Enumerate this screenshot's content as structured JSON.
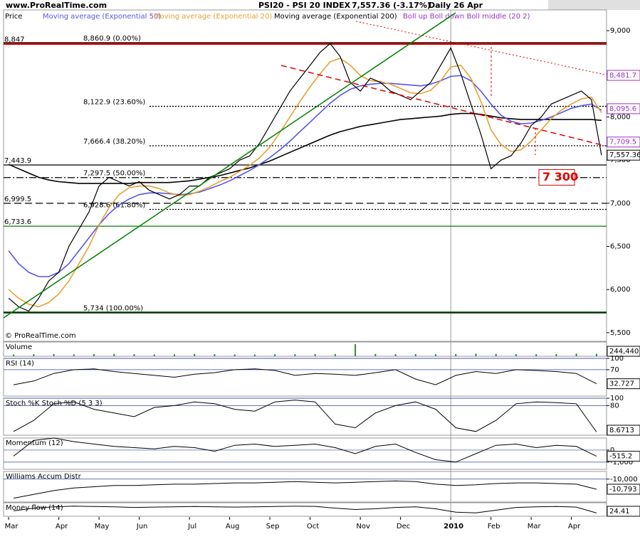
{
  "site": "www.ProRealTime.com",
  "copyright": "© ProRealTime.com",
  "chart_data": [
    {
      "type": "line",
      "title": "PSI20 - PSI 20 INDEX",
      "subtitle": "7,557.36 (-3.17%)",
      "period": "Daily  26 Apr",
      "legend": [
        "Price"
      ],
      "categories": [
        "Mar",
        null,
        null,
        null,
        null,
        "Apr",
        null,
        null,
        null,
        "May",
        null,
        null,
        null,
        "Jun",
        null,
        null,
        null,
        null,
        "Jul",
        null,
        null,
        null,
        "Aug",
        null,
        null,
        null,
        "Sep",
        null,
        null,
        null,
        "Oct",
        null,
        null,
        null,
        null,
        "Nov",
        null,
        null,
        null,
        "Dec",
        null,
        null,
        null,
        null,
        "2010",
        null,
        null,
        null,
        "Feb",
        null,
        null,
        null,
        "Mar",
        null,
        null,
        null,
        "Apr",
        null,
        null,
        null
      ],
      "ylim": [
        5400,
        9240
      ],
      "yticks": [
        {
          "value": 5500,
          "label": "5,500"
        },
        {
          "value": 6000,
          "label": "6,000"
        },
        {
          "value": 6500,
          "label": "6,500"
        },
        {
          "value": 7000,
          "label": "7,000"
        },
        {
          "value": 7500,
          "label": "7,500"
        },
        {
          "value": 8000,
          "label": "8,000"
        },
        {
          "value": 8500,
          "label": "8,500"
        },
        {
          "value": 9000,
          "label": "9,000"
        }
      ],
      "series": [
        {
          "name": "Moving average (Exponential 200)",
          "color": "#000000",
          "values": [
            7450,
            7400,
            7350,
            7300,
            7270,
            7250,
            7240,
            7230,
            7230,
            7230,
            7230,
            7230,
            7230,
            7240,
            7240,
            7240,
            7240,
            7250,
            7260,
            7280,
            7300,
            7320,
            7350,
            7380,
            7410,
            7450,
            7490,
            7540,
            7590,
            7640,
            7690,
            7740,
            7790,
            7830,
            7860,
            7890,
            7910,
            7930,
            7950,
            7970,
            7980,
            7990,
            8000,
            8010,
            8030,
            8040,
            8040,
            8030,
            8010,
            7990,
            7980,
            7970,
            7970,
            7970,
            7970,
            7970,
            7970,
            7970,
            7970,
            7960
          ]
        },
        {
          "name": "Moving average (Exponential 50)",
          "color": "#5555ee",
          "values": [
            6450,
            6300,
            6200,
            6150,
            6150,
            6200,
            6300,
            6450,
            6600,
            6750,
            6880,
            6980,
            7050,
            7100,
            7120,
            7120,
            7110,
            7100,
            7110,
            7130,
            7170,
            7210,
            7260,
            7320,
            7380,
            7450,
            7530,
            7620,
            7720,
            7830,
            7940,
            8050,
            8160,
            8250,
            8320,
            8360,
            8380,
            8390,
            8390,
            8380,
            8370,
            8360,
            8380,
            8420,
            8470,
            8480,
            8420,
            8300,
            8150,
            8020,
            7950,
            7920,
            7930,
            7960,
            8000,
            8050,
            8100,
            8130,
            8150,
            8080
          ]
        },
        {
          "name": "Moving average (Exponential 20)",
          "color": "#e8a030",
          "values": [
            6000,
            5900,
            5830,
            5800,
            5850,
            5950,
            6100,
            6300,
            6500,
            6750,
            6950,
            7100,
            7180,
            7200,
            7200,
            7170,
            7120,
            7090,
            7100,
            7140,
            7190,
            7250,
            7300,
            7370,
            7440,
            7530,
            7650,
            7820,
            8000,
            8180,
            8350,
            8500,
            8640,
            8680,
            8600,
            8480,
            8420,
            8410,
            8380,
            8330,
            8280,
            8270,
            8310,
            8420,
            8580,
            8600,
            8450,
            8180,
            7850,
            7680,
            7600,
            7620,
            7720,
            7850,
            7980,
            8080,
            8150,
            8210,
            8230,
            8050
          ]
        },
        {
          "name": "Price",
          "color": "#000000",
          "values": [
            5900,
            5800,
            5750,
            5900,
            6100,
            6200,
            6500,
            6700,
            6900,
            7200,
            7300,
            7250,
            7200,
            7250,
            7150,
            7100,
            7050,
            7100,
            7200,
            7200,
            7300,
            7350,
            7400,
            7500,
            7550,
            7700,
            7900,
            8100,
            8300,
            8450,
            8600,
            8750,
            8850,
            8700,
            8400,
            8300,
            8450,
            8400,
            8300,
            8250,
            8200,
            8300,
            8400,
            8600,
            8800,
            8500,
            8150,
            7800,
            7400,
            7500,
            7550,
            7700,
            7900,
            8000,
            8150,
            8200,
            8250,
            8300,
            8200,
            7557.36
          ]
        }
      ],
      "band_legend": "Boll up Boll down Boll middle (20 2)",
      "levels": [
        {
          "value": 8847,
          "label": "8,847",
          "kind": "level",
          "color": "#e00000",
          "style": "thick"
        },
        {
          "value": 8860.9,
          "label": "8,860.9 (0.00%)",
          "kind": "fibonacci",
          "color": "#000000",
          "style": "solid"
        },
        {
          "value": 8122.9,
          "label": "8,122.9 (23.60%)",
          "kind": "fibonacci",
          "color": "#000000",
          "style": "dotted"
        },
        {
          "value": 7666.4,
          "label": "7,666.4 (38.20%)",
          "kind": "fibonacci",
          "color": "#000000",
          "style": "dotted"
        },
        {
          "value": 7443.9,
          "label": "7,443.9",
          "kind": "level",
          "color": "#000000",
          "style": "solid"
        },
        {
          "value": 7297.5,
          "label": "7,297.5 (50.00%)",
          "kind": "fibonacci",
          "color": "#000000",
          "style": "dashdot"
        },
        {
          "value": 6999.5,
          "label": "6,999.5",
          "kind": "level",
          "color": "#000000",
          "style": "dashed"
        },
        {
          "value": 6928.6,
          "label": "6,928.6 (61.80%)",
          "kind": "fibonacci",
          "color": "#000000",
          "style": "dotted"
        },
        {
          "value": 6733.6,
          "label": "6,733.6",
          "kind": "level",
          "color": "#008000",
          "style": "solid"
        },
        {
          "value": 5734,
          "label": "5,734 (100.00%)",
          "kind": "fibonacci",
          "color": "#003300",
          "style": "thick"
        }
      ],
      "price_labels": [
        {
          "value": 8481.7,
          "label": "8,481.7",
          "color": "#9b30c8"
        },
        {
          "value": 8095.6,
          "label": "8,095.6",
          "color": "#9b30c8"
        },
        {
          "value": 7709.5,
          "label": "7,709.5",
          "color": "#9b30c8"
        },
        {
          "value": 7557.36,
          "label": "7,557.36",
          "color": "#000000"
        }
      ],
      "target": {
        "value": 7300,
        "label": "7 300",
        "color": "#e00000"
      }
    },
    {
      "type": "bar",
      "title": "Volume",
      "color": "#2c8a2c",
      "ylim": [
        0,
        1400000
      ],
      "values": [
        180000,
        200000,
        220000,
        190000,
        210000,
        230000,
        200000,
        180000,
        190000,
        210000,
        200000,
        180000,
        170000,
        190000,
        200000,
        210000,
        220000,
        1200000,
        230000,
        200000,
        210000,
        190000,
        220000,
        250000,
        230000,
        210000,
        200000,
        220000,
        260000,
        244440
      ],
      "last_label": "244,440"
    },
    {
      "type": "line",
      "title": "RSI (14)",
      "color": "#000000",
      "ylim": [
        0,
        100
      ],
      "yticks": [
        100,
        70
      ],
      "values": [
        30,
        40,
        60,
        70,
        72,
        65,
        60,
        55,
        50,
        58,
        62,
        70,
        72,
        68,
        55,
        60,
        58,
        55,
        62,
        70,
        45,
        30,
        55,
        65,
        60,
        70,
        68,
        65,
        60,
        32.727
      ],
      "last_label": "32.727"
    },
    {
      "type": "line",
      "title": "Stoch %K Stoch %D (5 3 3)",
      "color": "#000000",
      "ylim": [
        0,
        100
      ],
      "yticks": [
        100,
        80
      ],
      "values": [
        10,
        40,
        85,
        90,
        70,
        60,
        50,
        75,
        80,
        90,
        85,
        70,
        65,
        90,
        95,
        90,
        30,
        20,
        60,
        80,
        90,
        70,
        20,
        10,
        40,
        85,
        90,
        88,
        85,
        8.6713
      ],
      "last_label": "8.6713"
    },
    {
      "type": "line",
      "title": "Momentum (12)",
      "color": "#000000",
      "ylim": [
        -1600,
        1000
      ],
      "yticks": [
        0,
        {
          "value": -1000,
          "label": "-1,000"
        }
      ],
      "values": [
        -500,
        800,
        1000,
        700,
        500,
        300,
        200,
        100,
        300,
        200,
        -100,
        400,
        500,
        300,
        400,
        500,
        200,
        -300,
        300,
        500,
        -200,
        -800,
        -1000,
        -300,
        400,
        500,
        200,
        400,
        300,
        -515.2
      ],
      "last_label": "-515.2"
    },
    {
      "type": "line",
      "title": "Williams Accum Distr",
      "color": "#000000",
      "ylim": [
        -11800,
        -9400
      ],
      "yticks": [
        {
          "value": -10000,
          "label": "-10,000"
        }
      ],
      "values": [
        -11500,
        -11200,
        -10900,
        -10700,
        -10600,
        -10500,
        -10500,
        -10450,
        -10400,
        -10400,
        -10350,
        -10300,
        -10300,
        -10250,
        -10200,
        -10250,
        -10300,
        -10250,
        -10200,
        -10150,
        -10200,
        -10400,
        -10500,
        -10450,
        -10350,
        -10300,
        -10300,
        -10350,
        -10400,
        -10793
      ],
      "last_label": "-10,793"
    },
    {
      "type": "line",
      "title": "Money flow (14)",
      "color": "#000000",
      "ylim": [
        0,
        100
      ],
      "yticks": [],
      "values": [
        40,
        60,
        70,
        75,
        72,
        70,
        65,
        68,
        70,
        72,
        70,
        68,
        70,
        72,
        74,
        73,
        60,
        50,
        55,
        65,
        70,
        55,
        30,
        25,
        45,
        65,
        70,
        72,
        68,
        24.41
      ],
      "last_label": "24.41"
    }
  ]
}
